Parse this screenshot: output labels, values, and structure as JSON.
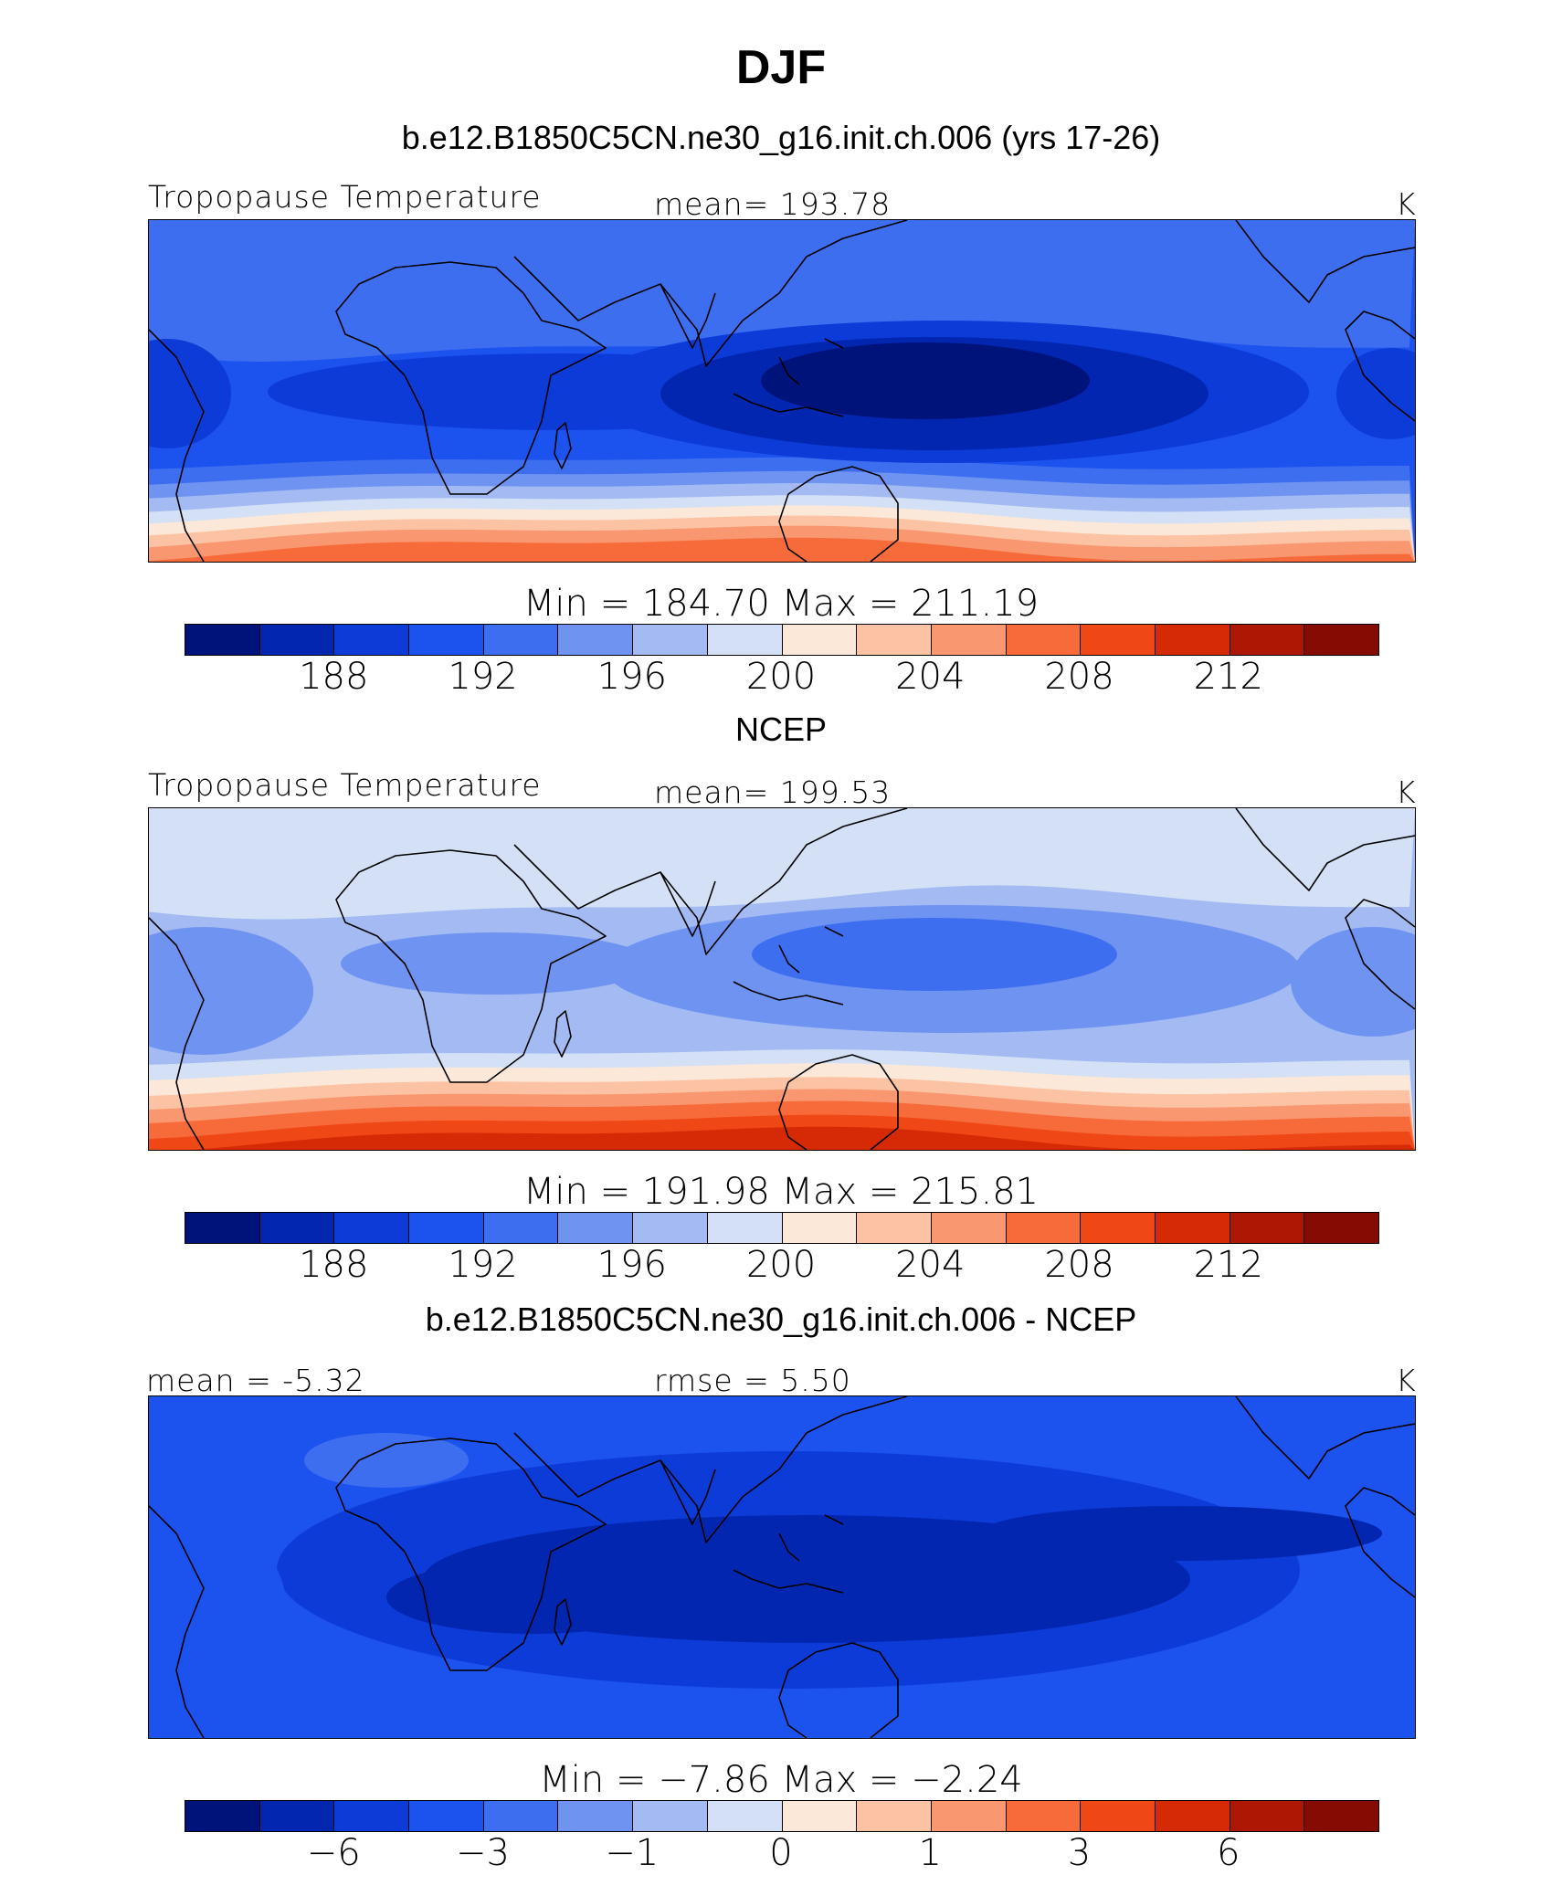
{
  "title": "DJF",
  "colors": [
    "#00137a",
    "#0226b0",
    "#0d3bd8",
    "#1c52ee",
    "#3e6ef0",
    "#6f93f0",
    "#a3bbf2",
    "#d3e0f6",
    "#fce8d8",
    "#fbc3a4",
    "#f99770",
    "#f76b3a",
    "#ef4715",
    "#d62a07",
    "#ad1704",
    "#860b02"
  ],
  "coast_color": "#000000",
  "panels": [
    {
      "id": "model",
      "title": "b.e12.B1850C5CN.ne30_g16.init.ch.006 (yrs 17-26)",
      "left_label": "Tropopause Temperature",
      "center_label": "mean= 193.78",
      "right_label": "K",
      "minmax": "Min = 184.70 Max = 211.19",
      "ticks": [
        "188",
        "192",
        "196",
        "200",
        "204",
        "208",
        "212"
      ],
      "field": {
        "mean": 193.78,
        "min": 184.7,
        "max": 211.19
      }
    },
    {
      "id": "obs",
      "title": "NCEP",
      "left_label": "Tropopause Temperature",
      "center_label": "mean= 199.53",
      "right_label": "K",
      "minmax": "Min = 191.98 Max = 215.81",
      "ticks": [
        "188",
        "192",
        "196",
        "200",
        "204",
        "208",
        "212"
      ],
      "field": {
        "mean": 199.53,
        "min": 191.98,
        "max": 215.81
      }
    },
    {
      "id": "diff",
      "title": "b.e12.B1850C5CN.ne30_g16.init.ch.006 - NCEP",
      "left_label": "mean = -5.32",
      "center_label": "rmse = 5.50",
      "right_label": "K",
      "minmax": "Min = −7.86 Max = −2.24",
      "ticks": [
        "−6",
        "−3",
        "−1",
        "0",
        "1",
        "3",
        "6"
      ],
      "field": {
        "mean": -5.32,
        "rmse": 5.5,
        "min": -7.86,
        "max": -2.24
      }
    }
  ]
}
